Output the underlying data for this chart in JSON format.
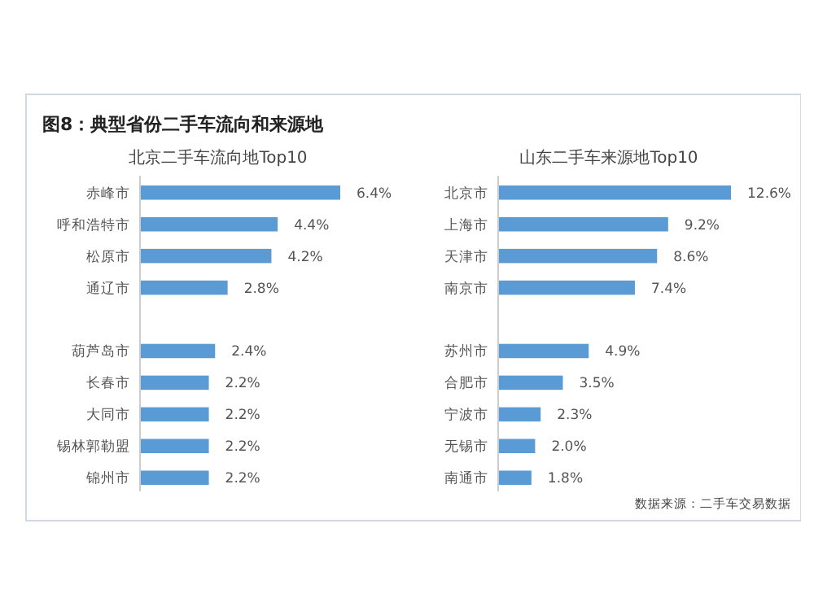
{
  "chart_data": [
    {
      "type": "bar",
      "orientation": "horizontal",
      "title": "图8：典型省份二手车流向和来源地",
      "subtitle": "北京二手车流向地Top10",
      "categories": [
        "赤峰市",
        "呼和浩特市",
        "松原市",
        "通辽市",
        null,
        "葫芦岛市",
        "长春市",
        "大同市",
        "锡林郭勒盟",
        "锦州市"
      ],
      "values": [
        6.4,
        4.4,
        4.2,
        2.8,
        null,
        2.4,
        2.2,
        2.2,
        2.2,
        2.2
      ],
      "value_labels": [
        "6.4%",
        "4.4%",
        "4.2%",
        "2.8%",
        null,
        "2.4%",
        "2.2%",
        "2.2%",
        "2.2%",
        "2.2%"
      ],
      "color": "#5b9bd5"
    },
    {
      "type": "bar",
      "orientation": "horizontal",
      "subtitle": "山东二手车来源地Top10",
      "categories": [
        "北京市",
        "上海市",
        "天津市",
        "南京市",
        null,
        "苏州市",
        "合肥市",
        "宁波市",
        "无锡市",
        "南通市"
      ],
      "values": [
        12.6,
        9.2,
        8.6,
        7.4,
        null,
        4.9,
        3.5,
        2.3,
        2.0,
        1.8
      ],
      "value_labels": [
        "12.6%",
        "9.2%",
        "8.6%",
        "7.4%",
        null,
        "4.9%",
        "3.5%",
        "2.3%",
        "2.0%",
        "1.8%"
      ],
      "color": "#5b9bd5",
      "annotations": [
        "数据来源：二手车交易数据"
      ]
    }
  ]
}
